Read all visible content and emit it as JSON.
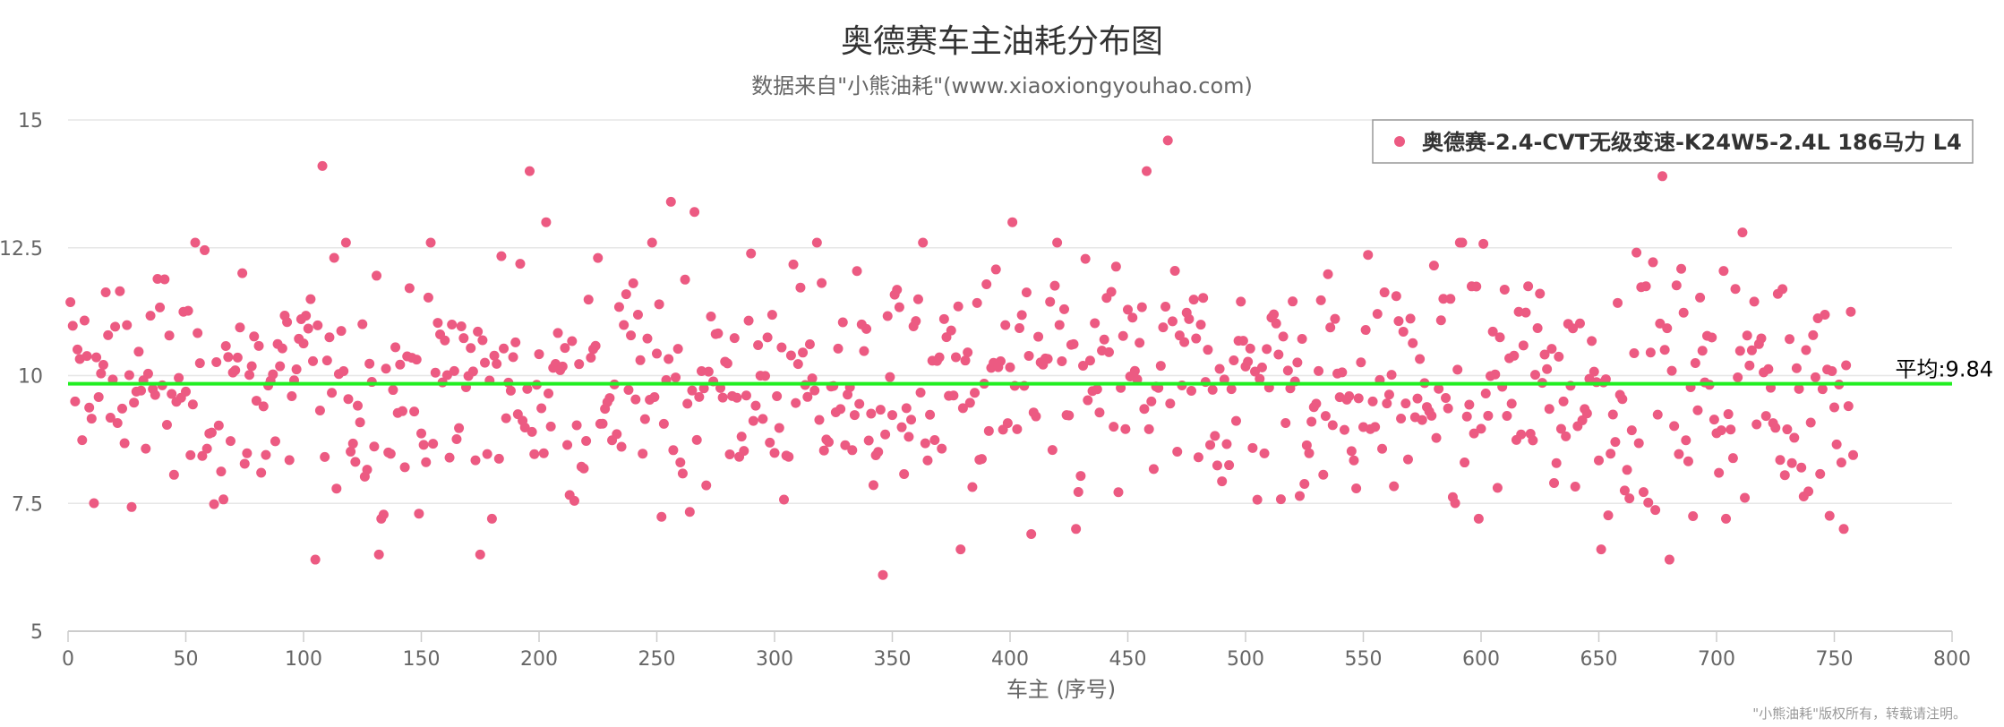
{
  "chart_data": {
    "type": "scatter",
    "title": "奥德赛车主油耗分布图",
    "subtitle": "数据来自\"小熊油耗\"(www.xiaoxiongyouhao.com)",
    "xlabel": "车主 (序号)",
    "ylabel": "",
    "xlim": [
      0,
      800
    ],
    "ylim": [
      5,
      15
    ],
    "x_ticks": [
      "0",
      "50",
      "100",
      "150",
      "200",
      "250",
      "300",
      "350",
      "400",
      "450",
      "500",
      "550",
      "600",
      "650",
      "700",
      "750",
      "800"
    ],
    "y_ticks": [
      "5",
      "7.5",
      "10",
      "12.5",
      "15"
    ],
    "grid": true,
    "legend_position": "top-right",
    "series": [
      {
        "name": "奥德赛-2.4-CVT无级变速-K24W5-2.4L 186马力 L4",
        "color": "#ec5a82",
        "x_range": [
          1,
          758
        ],
        "count": 758,
        "approximate_mean": 9.84,
        "notable_points": [
          {
            "x": 108,
            "y": 14.1
          },
          {
            "x": 196,
            "y": 14.0
          },
          {
            "x": 203,
            "y": 13.0
          },
          {
            "x": 256,
            "y": 13.4
          },
          {
            "x": 266,
            "y": 13.2
          },
          {
            "x": 401,
            "y": 13.0
          },
          {
            "x": 458,
            "y": 14.0
          },
          {
            "x": 467,
            "y": 14.6
          },
          {
            "x": 677,
            "y": 13.9
          },
          {
            "x": 711,
            "y": 12.8
          },
          {
            "x": 105,
            "y": 6.4
          },
          {
            "x": 132,
            "y": 6.5
          },
          {
            "x": 175,
            "y": 6.5
          },
          {
            "x": 346,
            "y": 6.1
          },
          {
            "x": 379,
            "y": 6.6
          },
          {
            "x": 409,
            "y": 6.9
          },
          {
            "x": 428,
            "y": 7.0
          },
          {
            "x": 651,
            "y": 6.6
          },
          {
            "x": 680,
            "y": 6.4
          },
          {
            "x": 754,
            "y": 7.0
          }
        ]
      }
    ],
    "reference_line": {
      "value": 9.84,
      "label": "平均:9.84",
      "color": "#22ee22"
    }
  },
  "credit": "\"小熊油耗\"版权所有，转载请注明。"
}
